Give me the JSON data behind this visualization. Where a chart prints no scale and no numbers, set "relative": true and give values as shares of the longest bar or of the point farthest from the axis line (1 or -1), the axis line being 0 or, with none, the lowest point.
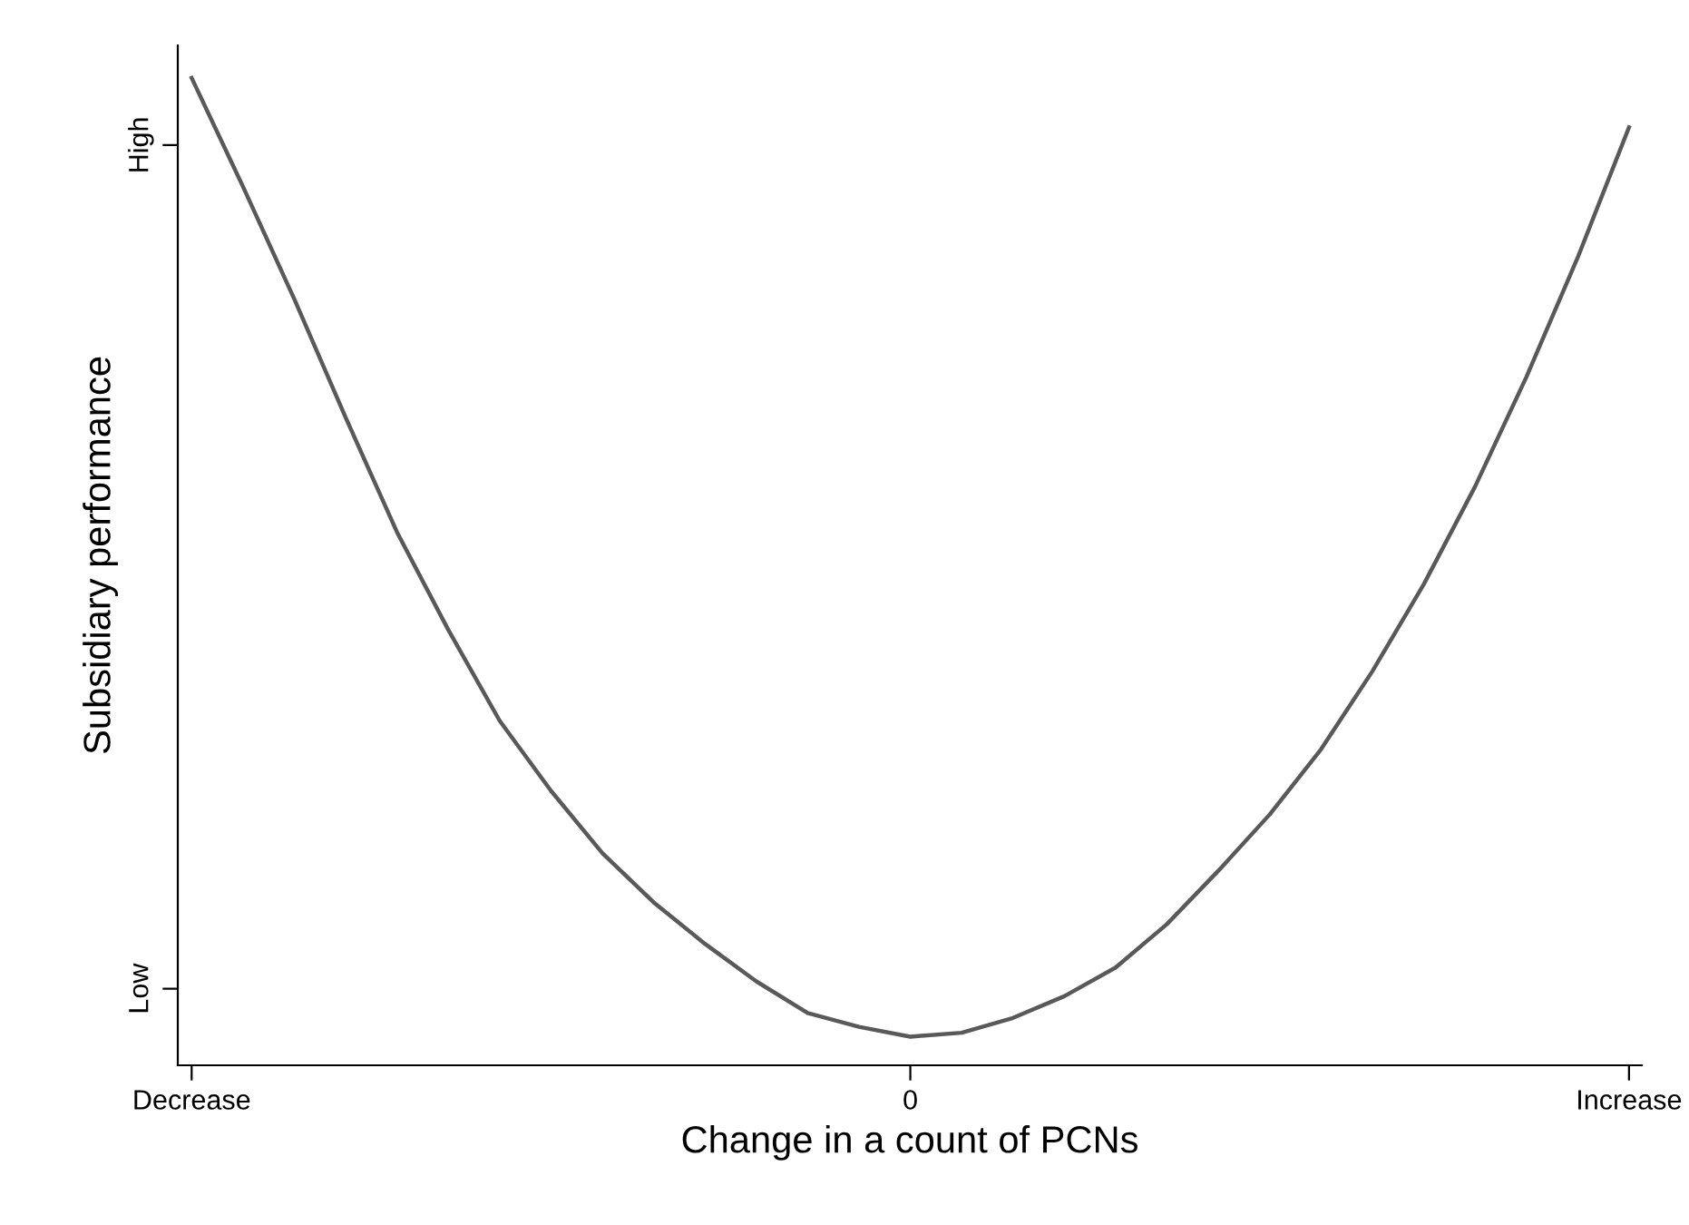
{
  "chart_data": {
    "type": "line",
    "xlabel": "Change in a count of PCNs",
    "ylabel": "Subsidiary performance",
    "relative": true,
    "categories": [
      "Decrease",
      null,
      null,
      null,
      null,
      null,
      null,
      null,
      null,
      null,
      null,
      null,
      null,
      null,
      "0",
      null,
      null,
      null,
      null,
      null,
      null,
      null,
      null,
      null,
      null,
      null,
      null,
      null,
      "Increase"
    ],
    "annotations": [
      "High",
      "Low"
    ],
    "series": [
      {
        "color": "#595959",
        "values": [
          1.0,
          0.89,
          0.776,
          0.656,
          0.54,
          0.441,
          0.349,
          0.278,
          0.215,
          0.165,
          0.123,
          0.085,
          0.053,
          0.039,
          0.029,
          0.033,
          0.048,
          0.07,
          0.099,
          0.143,
          0.197,
          0.254,
          0.32,
          0.399,
          0.487,
          0.586,
          0.697,
          0.818,
          0.95
        ]
      }
    ]
  }
}
